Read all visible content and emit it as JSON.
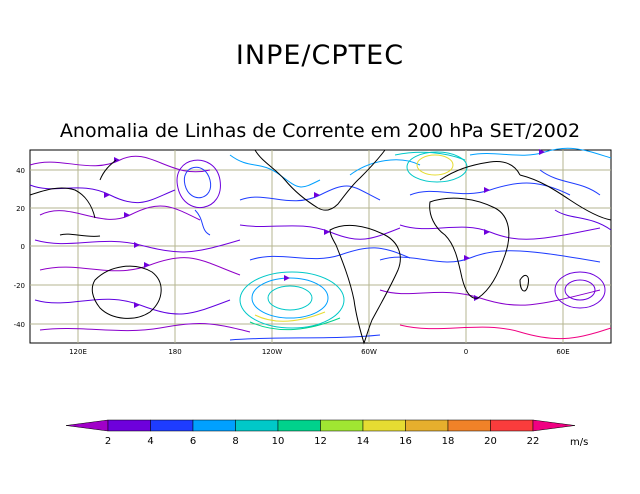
{
  "header": {
    "institution": "INPE/CPTEC"
  },
  "map": {
    "title": "Anomalia de Linhas de Corrente em 200 hPa SET/2002",
    "lat_ticks": [
      "40",
      "20",
      "0",
      "-20",
      "-40"
    ],
    "lon_ticks": [
      "120E",
      "180",
      "120W",
      "60W",
      "0",
      "60E"
    ],
    "colors": {
      "grid": "#b5b590",
      "coast": "#000000",
      "frame": "#000000"
    }
  },
  "colorbar": {
    "values": [
      "2",
      "4",
      "6",
      "8",
      "10",
      "12",
      "14",
      "16",
      "18",
      "20",
      "22"
    ],
    "unit": "m/s",
    "colors": [
      "#a000c8",
      "#6e00dc",
      "#1e3cff",
      "#00a0ff",
      "#00c8c8",
      "#00d28c",
      "#a0e632",
      "#e6dc32",
      "#e6af2d",
      "#f08228",
      "#fa3c3c",
      "#f00082"
    ]
  }
}
